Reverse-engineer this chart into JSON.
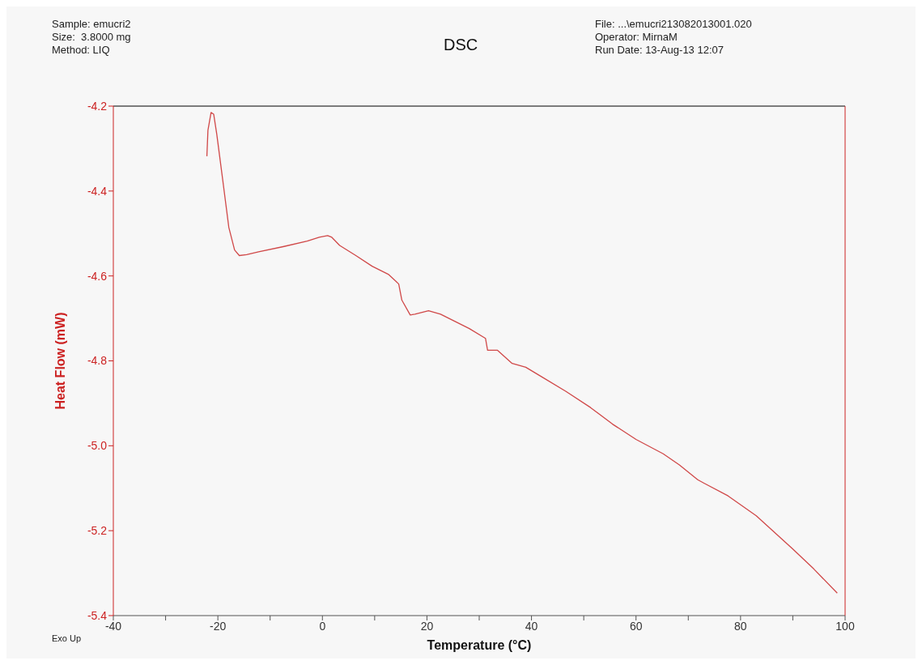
{
  "chart_data": {
    "type": "line",
    "title": "DSC",
    "xlabel": "Temperature (°C)",
    "ylabel": "Heat Flow (mW)",
    "annotations": [
      "Sample: emucri2",
      "Size:  3.8000 mg",
      "Method: LIQ",
      "File: ...\\emucri213082013001.020",
      "Operator: MirnaM",
      "Run Date: 13-Aug-13 12:07",
      "Exo Up"
    ],
    "series": [
      {
        "color": "#d04848",
        "x": [
          -22.1,
          -21.9,
          -21.3,
          -20.8,
          -20.2,
          -19.1,
          -17.9,
          -16.8,
          -15.9,
          -14.5,
          -12.2,
          -7.5,
          -2.9,
          -0.6,
          1.0,
          1.8,
          3.3,
          6.4,
          9.5,
          12.6,
          14.1,
          14.6,
          15.2,
          16.8,
          17.7,
          20.3,
          22.6,
          25.0,
          28.1,
          31.2,
          31.6,
          33.5,
          36.3,
          38.9,
          42.0,
          46.6,
          51.3,
          55.5,
          60.0,
          65.2,
          68.3,
          71.8,
          73.0,
          77.6,
          83.0,
          89.9,
          94.0,
          98.5
        ],
        "values": [
          -4.318,
          -4.257,
          -4.215,
          -4.219,
          -4.267,
          -4.371,
          -4.486,
          -4.539,
          -4.552,
          -4.55,
          -4.543,
          -4.531,
          -4.518,
          -4.509,
          -4.505,
          -4.509,
          -4.528,
          -4.552,
          -4.577,
          -4.596,
          -4.613,
          -4.619,
          -4.657,
          -4.692,
          -4.69,
          -4.682,
          -4.69,
          -4.705,
          -4.724,
          -4.747,
          -4.775,
          -4.775,
          -4.806,
          -4.815,
          -4.838,
          -4.872,
          -4.91,
          -4.949,
          -4.985,
          -5.019,
          -5.045,
          -5.08,
          -5.088,
          -5.118,
          -5.165,
          -5.242,
          -5.29,
          -5.347
        ]
      }
    ],
    "xlim": [
      -40,
      100
    ],
    "xticks": [
      -40,
      {
        "value": -30,
        "label": null
      },
      -20,
      {
        "value": -10,
        "label": null
      },
      0,
      {
        "value": 10,
        "label": null
      },
      20,
      {
        "value": 30,
        "label": null
      },
      40,
      {
        "value": 50,
        "label": null
      },
      60,
      {
        "value": 70,
        "label": null
      },
      80,
      {
        "value": 90,
        "label": null
      },
      100
    ],
    "ylim": [
      -5.4,
      -4.2
    ],
    "yticks": [
      -5.4,
      -5.2,
      {
        "value": -5,
        "label": "-5.0"
      },
      -4.8,
      -4.6,
      -4.4,
      -4.2
    ],
    "grid": false,
    "legend": false,
    "marker": "none",
    "line_style": "solid"
  }
}
